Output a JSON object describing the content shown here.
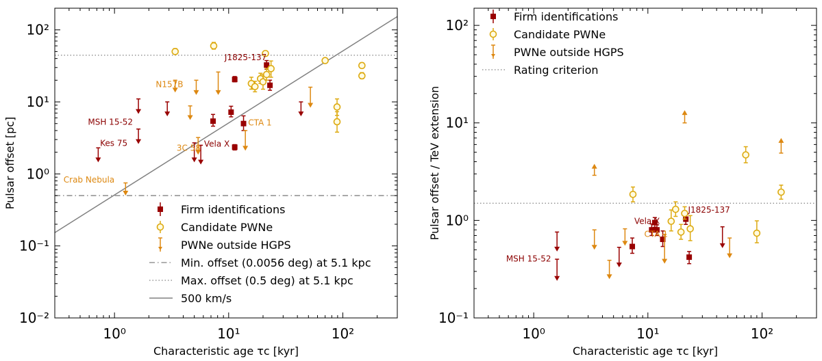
{
  "colors": {
    "firm": "#990000",
    "candidate_edge": "#ddaa11",
    "outside": "#dd8811",
    "line": "#808080",
    "annot_firm": "#8b0000",
    "annot_out": "#dd8811"
  },
  "chart_data": [
    {
      "type": "scatter",
      "id": "left",
      "xlabel": "Characteristic age τc [kyr]",
      "ylabel": "Pulsar offset [pc]",
      "xscale": "log",
      "yscale": "log",
      "xlim": [
        0.3,
        300
      ],
      "ylim": [
        0.01,
        200
      ],
      "x_ticks": [
        {
          "v": 1,
          "label": "10⁰"
        },
        {
          "v": 10,
          "label": "10¹"
        },
        {
          "v": 100,
          "label": "10²"
        }
      ],
      "y_ticks": [
        {
          "v": 0.01,
          "label": "10⁻²"
        },
        {
          "v": 0.1,
          "label": "10⁻¹"
        },
        {
          "v": 1,
          "label": "10⁰"
        },
        {
          "v": 10,
          "label": "10¹"
        },
        {
          "v": 100,
          "label": "10²"
        }
      ],
      "hlines": [
        {
          "y": 44.5,
          "style": "dotted",
          "name": "max-offset-line"
        },
        {
          "y": 0.5,
          "style": "dashdot",
          "name": "min-offset-line"
        }
      ],
      "line_500kms": {
        "x": [
          0.3,
          300
        ],
        "y": [
          0.153,
          153
        ]
      },
      "series": [
        {
          "name": "Firm identifications",
          "kind": "firm",
          "points": [
            {
              "x": 7.3,
              "y": 5.4,
              "yerr": [
                0.8,
                1.3
              ]
            },
            {
              "x": 10.5,
              "y": 7.2,
              "yerr": [
                1.0,
                1.5
              ]
            },
            {
              "x": 11.3,
              "y": 2.35,
              "yerr": [
                0.2,
                0.2
              ]
            },
            {
              "x": 11.3,
              "y": 20.5,
              "yerr": [
                1.5,
                2.0
              ]
            },
            {
              "x": 13.5,
              "y": 5.0,
              "yerr": [
                1.0,
                1.4
              ]
            },
            {
              "x": 21.5,
              "y": 32.5,
              "yerr": [
                4.0,
                5.0
              ]
            },
            {
              "x": 23.0,
              "y": 17.0,
              "yerr": [
                2.5,
                3.0
              ]
            }
          ]
        },
        {
          "name": "Candidate PWNe",
          "kind": "candidate",
          "points": [
            {
              "x": 3.4,
              "y": 50,
              "yerr": [
                4,
                5
              ]
            },
            {
              "x": 7.4,
              "y": 60,
              "yerr": [
                6,
                7
              ]
            },
            {
              "x": 15.8,
              "y": 18,
              "yerr": [
                3,
                4
              ]
            },
            {
              "x": 17.0,
              "y": 16.3,
              "yerr": [
                2.5,
                3
              ]
            },
            {
              "x": 19.0,
              "y": 21,
              "yerr": [
                3,
                4
              ]
            },
            {
              "x": 20.0,
              "y": 19,
              "yerr": [
                4,
                5
              ]
            },
            {
              "x": 21.0,
              "y": 47,
              "yerr": [
                3,
                3
              ]
            },
            {
              "x": 21.5,
              "y": 24,
              "yerr": [
                4,
                5
              ]
            },
            {
              "x": 23.5,
              "y": 29,
              "yerr": [
                7,
                8
              ]
            },
            {
              "x": 70,
              "y": 37.5,
              "yerr": [
                2,
                2
              ]
            },
            {
              "x": 89,
              "y": 8.5,
              "yerr": [
                2,
                2.5
              ]
            },
            {
              "x": 89,
              "y": 5.3,
              "yerr": [
                1.5,
                2
              ]
            },
            {
              "x": 147,
              "y": 32,
              "yerr": [
                2.5,
                3
              ]
            },
            {
              "x": 147,
              "y": 23,
              "yerr": [
                2,
                2.5
              ]
            }
          ]
        },
        {
          "name": "PWNe outside HGPS",
          "kind": "outside",
          "points": [
            {
              "x": 1.25,
              "y": 0.5,
              "top": 0.75
            },
            {
              "x": 3.4,
              "y": 13.5,
              "top": 20
            },
            {
              "x": 4.6,
              "y": 5.6,
              "top": 8.8
            },
            {
              "x": 5.2,
              "y": 12.5,
              "top": 20
            },
            {
              "x": 5.4,
              "y": 1.85,
              "top": 3.2
            },
            {
              "x": 8.1,
              "y": 12.5,
              "top": 26
            },
            {
              "x": 14.0,
              "y": 2.1,
              "top": 4.0
            },
            {
              "x": 52,
              "y": 8.3,
              "top": 16
            }
          ]
        },
        {
          "name": "Firm upper limits",
          "kind": "firm_ul",
          "points": [
            {
              "x": 0.72,
              "y": 1.45,
              "top": 2.3
            },
            {
              "x": 1.62,
              "y": 2.6,
              "top": 4.2
            },
            {
              "x": 1.62,
              "y": 6.8,
              "top": 11
            },
            {
              "x": 2.9,
              "y": 6.3,
              "top": 10
            },
            {
              "x": 5.0,
              "y": 1.45,
              "top": 2.7
            },
            {
              "x": 5.7,
              "y": 1.35,
              "top": 2.5
            },
            {
              "x": 43,
              "y": 6.3,
              "top": 10
            }
          ]
        }
      ],
      "annotations": [
        {
          "text": "J1825-137",
          "x": 21.5,
          "y": 38,
          "kind": "firm",
          "anchor": "end",
          "dx": 0,
          "dy": 0
        },
        {
          "text": "N157B",
          "x": 2.3,
          "y": 16,
          "kind": "out",
          "anchor": "start",
          "dx": 0,
          "dy": 0
        },
        {
          "text": "MSH 15-52",
          "x": 1.62,
          "y": 4.8,
          "kind": "firm",
          "anchor": "end",
          "dx": -8,
          "dy": 0
        },
        {
          "text": "Kes 75",
          "x": 1.3,
          "y": 2.45,
          "kind": "firm",
          "anchor": "end",
          "dx": 0,
          "dy": 0
        },
        {
          "text": "3C 58",
          "x": 3.5,
          "y": 2.1,
          "kind": "out",
          "anchor": "start",
          "dx": 0,
          "dy": 0
        },
        {
          "text": "Vela X",
          "x": 10.2,
          "y": 2.4,
          "kind": "firm",
          "anchor": "end",
          "dx": 0,
          "dy": 0
        },
        {
          "text": "CTA 1",
          "x": 14.8,
          "y": 4.7,
          "kind": "out",
          "anchor": "start",
          "dx": 0,
          "dy": 0
        },
        {
          "text": "Crab Nebula",
          "x": 1.0,
          "y": 0.76,
          "kind": "out",
          "anchor": "end",
          "dx": 0,
          "dy": 0
        }
      ],
      "legend": {
        "position": "lower-right",
        "entries": [
          {
            "kind": "firm",
            "label": "Firm identifications"
          },
          {
            "kind": "candidate",
            "label": "Candidate PWNe"
          },
          {
            "kind": "outside",
            "label": "PWNe outside HGPS"
          },
          {
            "kind": "dashdot",
            "label": "Min. offset (0.0056 deg) at 5.1 kpc"
          },
          {
            "kind": "dotted",
            "label": "Max. offset (0.5 deg) at 5.1 kpc"
          },
          {
            "kind": "line",
            "label": "500 km/s"
          }
        ]
      }
    },
    {
      "type": "scatter",
      "id": "right",
      "xlabel": "Characteristic age τc [kyr]",
      "ylabel": "Pulsar offset / TeV extension",
      "xscale": "log",
      "yscale": "log",
      "xlim": [
        0.3,
        300
      ],
      "ylim": [
        0.1,
        150
      ],
      "x_ticks": [
        {
          "v": 1,
          "label": "10⁰"
        },
        {
          "v": 10,
          "label": "10¹"
        },
        {
          "v": 100,
          "label": "10²"
        }
      ],
      "y_ticks": [
        {
          "v": 0.1,
          "label": "10⁻¹"
        },
        {
          "v": 1,
          "label": "10⁰"
        },
        {
          "v": 10,
          "label": "10¹"
        },
        {
          "v": 100,
          "label": "10²"
        }
      ],
      "hlines": [
        {
          "y": 1.5,
          "style": "dotted",
          "name": "rating-criterion-line"
        }
      ],
      "series": [
        {
          "name": "Firm identifications",
          "kind": "firm",
          "points": [
            {
              "x": 7.3,
              "y": 0.54,
              "yerr": [
                0.08,
                0.12
              ]
            },
            {
              "x": 10.8,
              "y": 0.8,
              "yerr": [
                0.1,
                0.12
              ]
            },
            {
              "x": 11.5,
              "y": 0.95,
              "yerr": [
                0.1,
                0.12
              ]
            },
            {
              "x": 12.0,
              "y": 0.8,
              "yerr": [
                0.1,
                0.1
              ]
            },
            {
              "x": 13.5,
              "y": 0.64,
              "yerr": [
                0.1,
                0.14
              ]
            },
            {
              "x": 21.5,
              "y": 1.03,
              "yerr": [
                0.12,
                0.15
              ]
            },
            {
              "x": 23.0,
              "y": 0.42,
              "yerr": [
                0.06,
                0.06
              ]
            }
          ]
        },
        {
          "name": "Candidate PWNe",
          "kind": "candidate",
          "points": [
            {
              "x": 7.4,
              "y": 1.85,
              "yerr": [
                0.3,
                0.35
              ]
            },
            {
              "x": 16.0,
              "y": 0.98,
              "yerr": [
                0.2,
                0.3
              ]
            },
            {
              "x": 17.5,
              "y": 1.3,
              "yerr": [
                0.2,
                0.25
              ]
            },
            {
              "x": 19.5,
              "y": 0.76,
              "yerr": [
                0.12,
                0.15
              ]
            },
            {
              "x": 21.0,
              "y": 1.18,
              "yerr": [
                0.15,
                0.2
              ]
            },
            {
              "x": 23.5,
              "y": 0.82,
              "yerr": [
                0.2,
                0.3
              ]
            },
            {
              "x": 72,
              "y": 4.7,
              "yerr": [
                0.8,
                1.0
              ]
            },
            {
              "x": 90,
              "y": 0.74,
              "yerr": [
                0.15,
                0.25
              ]
            },
            {
              "x": 147,
              "y": 1.95,
              "yerr": [
                0.3,
                0.35
              ]
            }
          ]
        },
        {
          "name": "PWNe outside HGPS (upper limits)",
          "kind": "outside_ul",
          "points": [
            {
              "x": 3.4,
              "y": 0.5,
              "top": 0.8
            },
            {
              "x": 4.6,
              "y": 0.25,
              "top": 0.39
            },
            {
              "x": 6.3,
              "y": 0.55,
              "top": 0.82
            },
            {
              "x": 14.0,
              "y": 0.36,
              "top": 0.72
            },
            {
              "x": 52,
              "y": 0.41,
              "top": 0.66
            }
          ]
        },
        {
          "name": "PWNe outside HGPS (lower limits)",
          "kind": "outside_ll",
          "points": [
            {
              "x": 3.4,
              "y": 3.8,
              "bottom": 2.9
            },
            {
              "x": 21.0,
              "y": 13.5,
              "bottom": 10
            },
            {
              "x": 147,
              "y": 7.0,
              "bottom": 4.9
            }
          ]
        },
        {
          "name": "Firm upper limits",
          "kind": "firm_ul",
          "points": [
            {
              "x": 1.6,
              "y": 0.24,
              "top": 0.4
            },
            {
              "x": 1.6,
              "y": 0.48,
              "top": 0.76
            },
            {
              "x": 5.6,
              "y": 0.33,
              "top": 0.53
            },
            {
              "x": 45,
              "y": 0.52,
              "top": 0.86
            }
          ]
        }
      ],
      "annotations": [
        {
          "text": "J1825-137",
          "x": 22.5,
          "y": 1.2,
          "kind": "firm",
          "anchor": "start",
          "dx": 0,
          "dy": 0
        },
        {
          "text": "Vela X",
          "x": 7.6,
          "y": 0.92,
          "kind": "firm",
          "anchor": "start",
          "dx": 0,
          "dy": 0
        },
        {
          "text": "CTA 1",
          "x": 9.3,
          "y": 0.68,
          "kind": "out",
          "anchor": "start",
          "dx": 0,
          "dy": 0
        },
        {
          "text": "MSH 15-52",
          "x": 1.42,
          "y": 0.38,
          "kind": "firm",
          "anchor": "end",
          "dx": 0,
          "dy": 0
        }
      ],
      "legend": {
        "position": "upper-left",
        "entries": [
          {
            "kind": "firm",
            "label": "Firm identifications"
          },
          {
            "kind": "candidate",
            "label": "Candidate PWNe"
          },
          {
            "kind": "outside",
            "label": "PWNe outside HGPS"
          },
          {
            "kind": "dotted",
            "label": "Rating criterion"
          }
        ]
      }
    }
  ]
}
